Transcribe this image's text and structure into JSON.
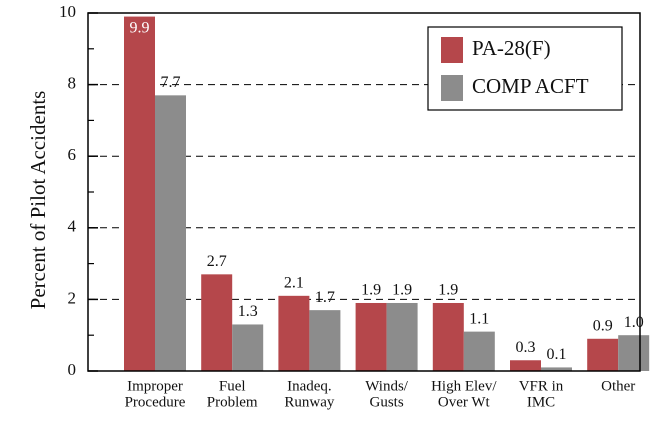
{
  "chart_data": {
    "type": "bar",
    "y_label": "Percent of Pilot Accidents",
    "categories": [
      [
        "Improper",
        "Procedure"
      ],
      [
        "Fuel",
        "Problem"
      ],
      [
        "Inadeq.",
        "Runway"
      ],
      [
        "Winds/",
        "Gusts"
      ],
      [
        "High Elev/",
        "Over Wt"
      ],
      [
        "VFR in",
        "IMC"
      ],
      [
        "Other"
      ]
    ],
    "series": [
      {
        "name": "PA-28(F)",
        "color": "#b5474b",
        "values": [
          9.9,
          2.7,
          2.1,
          1.9,
          1.9,
          0.3,
          0.9
        ]
      },
      {
        "name": "COMP ACFT",
        "color": "#8c8c8c",
        "values": [
          7.7,
          1.3,
          1.7,
          1.9,
          1.1,
          0.1,
          1.0
        ],
        "value_labels": [
          "7.7",
          "1.3",
          "1.7",
          "1.9",
          "1.1",
          "0.1",
          "1.0"
        ]
      }
    ],
    "ylim": [
      0,
      10
    ],
    "yticks": [
      0,
      2,
      4,
      6,
      8,
      10
    ],
    "yminorticks": [
      1,
      3,
      5,
      7,
      9
    ],
    "grid": true,
    "legend": "upper right"
  }
}
